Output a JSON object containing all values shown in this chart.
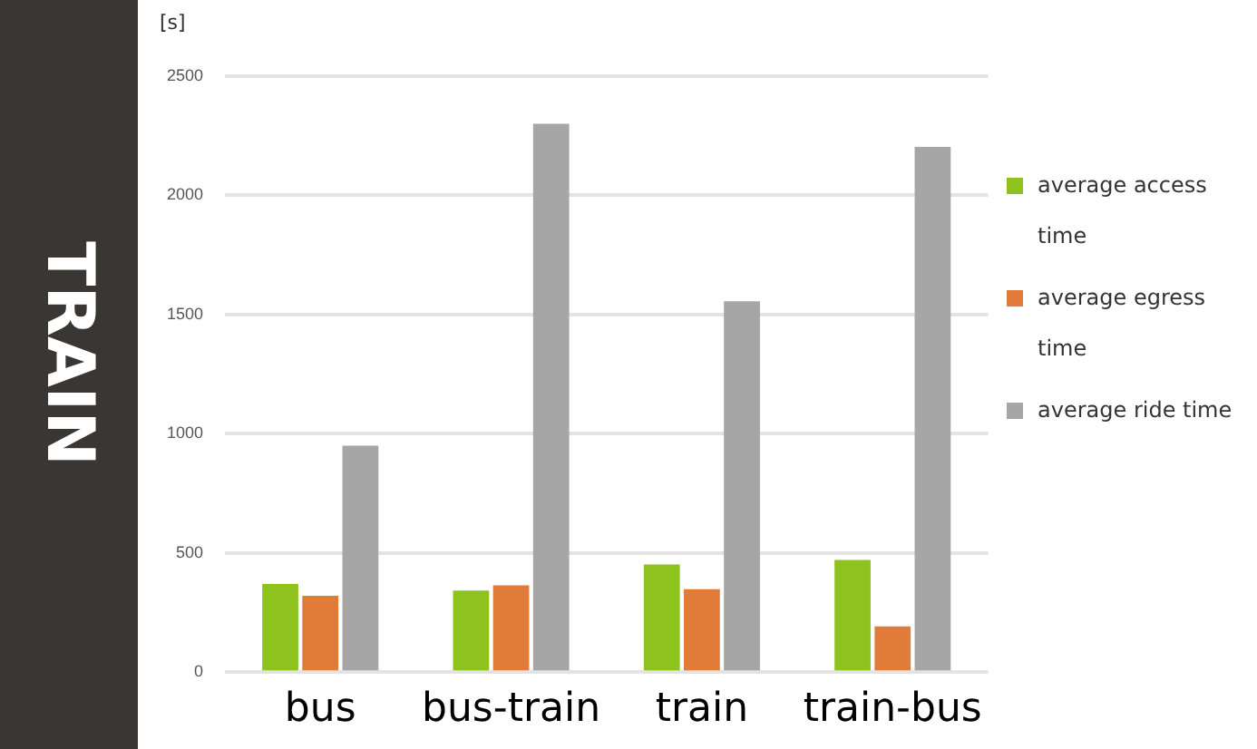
{
  "chart_data": {
    "type": "bar",
    "title": "TRAIN",
    "ylabel": "[s]",
    "categories": [
      "bus",
      "bus-train",
      "train",
      "train-bus"
    ],
    "series": [
      {
        "name": "average access time",
        "color": "#8dc21f",
        "values": [
          370,
          342,
          452,
          471
        ]
      },
      {
        "name": "average egress time",
        "color": "#e07b39",
        "values": [
          320,
          364,
          348,
          192
        ]
      },
      {
        "name": "average ride time",
        "color": "#a6a6a6",
        "values": [
          950,
          2300,
          1556,
          2203
        ]
      }
    ],
    "ylim": [
      0,
      2500
    ],
    "yticks": [
      0,
      500,
      1000,
      1500,
      2000,
      2500
    ],
    "grid": "y",
    "legend": "right"
  }
}
